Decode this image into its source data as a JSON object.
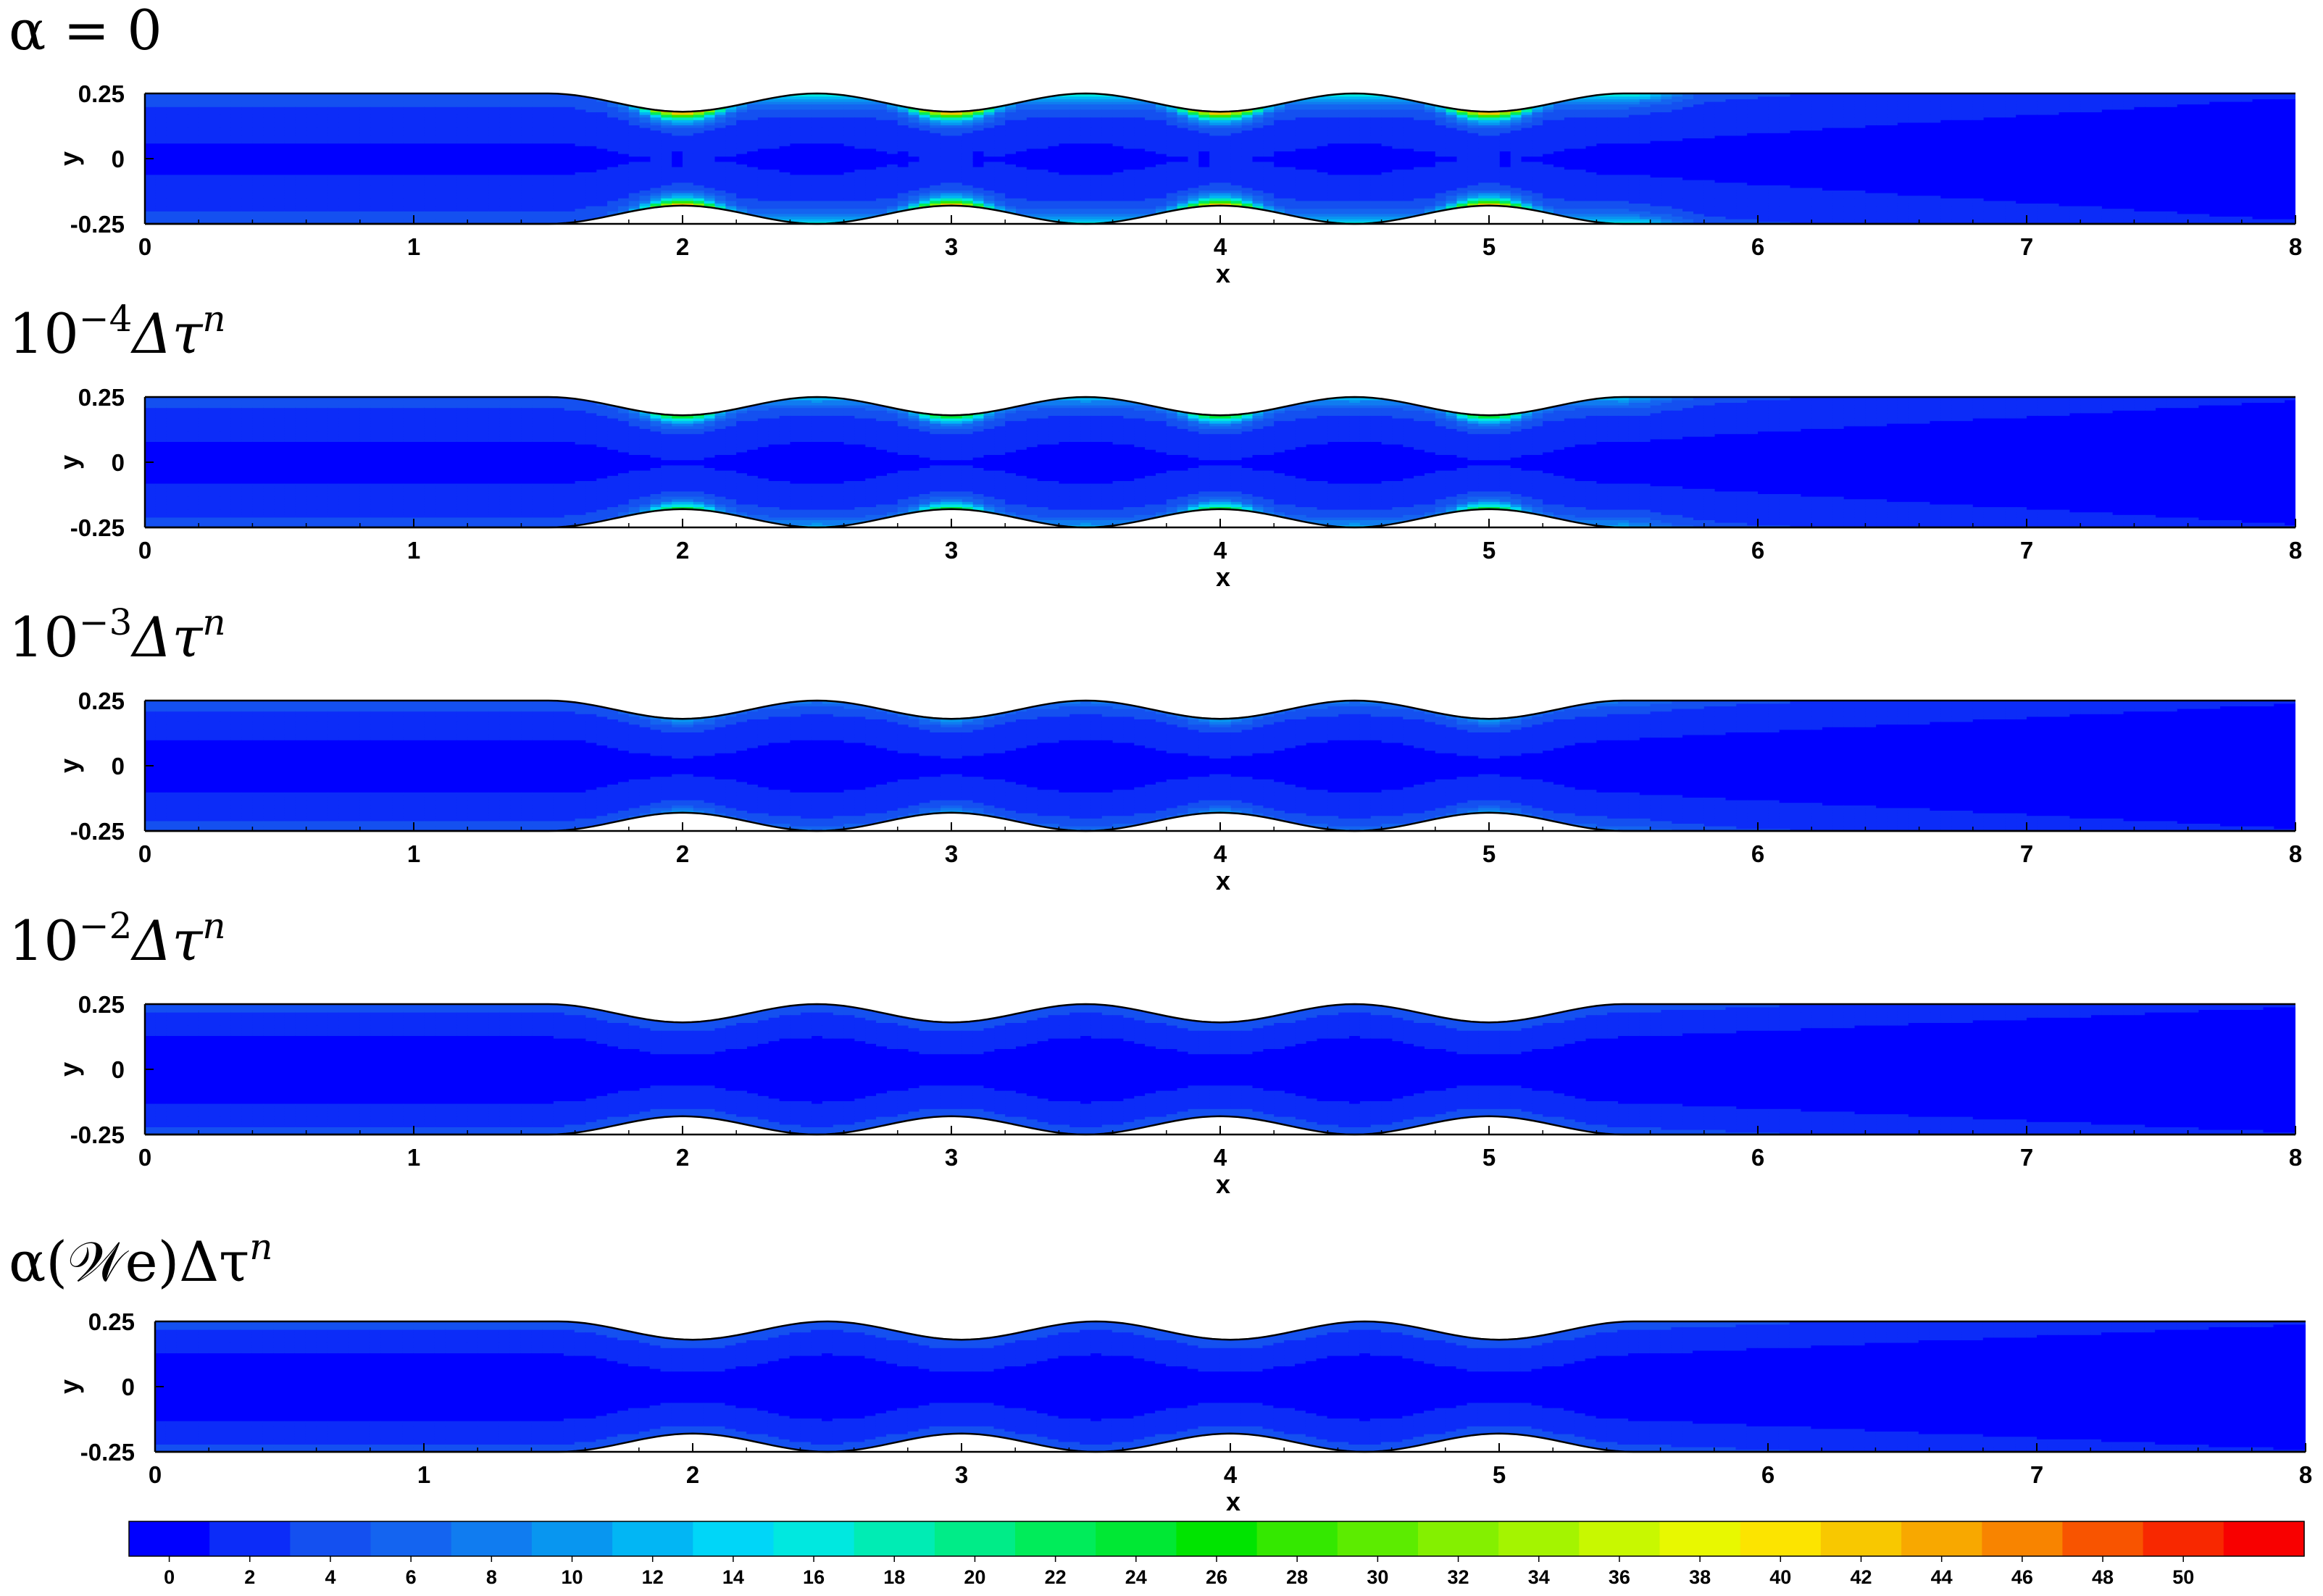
{
  "chart_data": {
    "type": "heatmap",
    "description_of_geometry": "channel 0<=x<=8, -0.25<=y<=0.25 with four sinusoidal constrictions between x=1.5 and x=5.5 narrowing to |y|=0.18 at x=2,3,4,5",
    "panels": [
      {
        "title_parts": [
          "α = 0",
          "",
          ""
        ],
        "xlabel": "x",
        "ylabel": "y",
        "xlim": [
          0,
          8
        ],
        "ylim": [
          -0.25,
          0.25
        ],
        "peak_value": 50,
        "hot_spots_x": [
          2,
          3,
          4,
          5
        ],
        "wall_band": 0.09,
        "streaks": true
      },
      {
        "title_parts": [
          "10",
          "−4",
          "Δτ"
        ],
        "xlabel": "x",
        "ylabel": "y",
        "xlim": [
          0,
          8
        ],
        "ylim": [
          -0.25,
          0.25
        ],
        "peak_value": 28,
        "hot_spots_x": [
          2,
          3,
          4,
          5
        ],
        "wall_band": 0.08,
        "streaks": false
      },
      {
        "title_parts": [
          "10",
          "−3",
          "Δτ"
        ],
        "xlabel": "x",
        "ylabel": "y",
        "xlim": [
          0,
          8
        ],
        "ylim": [
          -0.25,
          0.25
        ],
        "peak_value": 10,
        "hot_spots_x": [
          2,
          3,
          4,
          5
        ],
        "wall_band": 0.07,
        "streaks": false
      },
      {
        "title_parts": [
          "10",
          "−2",
          "Δτ"
        ],
        "xlabel": "x",
        "ylabel": "y",
        "xlim": [
          0,
          8
        ],
        "ylim": [
          -0.25,
          0.25
        ],
        "peak_value": 5,
        "hot_spots_x": [],
        "wall_band": 0.06,
        "streaks": false
      },
      {
        "title_parts": [
          "α(𝒲e)Δτ",
          "",
          ""
        ],
        "xlabel": "x",
        "ylabel": "y",
        "xlim": [
          0,
          8
        ],
        "ylim": [
          -0.25,
          0.25
        ],
        "peak_value": 5,
        "hot_spots_x": [],
        "wall_band": 0.06,
        "streaks": false
      }
    ],
    "title_superscript_n": "n",
    "x_ticks": [
      "0",
      "1",
      "2",
      "3",
      "4",
      "5",
      "6",
      "7",
      "8"
    ],
    "y_ticks": [
      "0.25",
      "0",
      "-0.25"
    ],
    "colorbar": {
      "range": [
        -1,
        51
      ],
      "tick_labels": [
        "0",
        "2",
        "4",
        "6",
        "8",
        "10",
        "12",
        "14",
        "16",
        "18",
        "20",
        "22",
        "24",
        "26",
        "28",
        "30",
        "32",
        "34",
        "36",
        "38",
        "40",
        "42",
        "44",
        "46",
        "48",
        "50"
      ],
      "colors": [
        "#0000ff",
        "#0c2cf8",
        "#1450f0",
        "#1464f0",
        "#107cf0",
        "#0896f0",
        "#02b6f4",
        "#00d6f8",
        "#00e8e0",
        "#00ecb4",
        "#00ec88",
        "#00ec5a",
        "#00e834",
        "#00e400",
        "#34e800",
        "#5cec00",
        "#84f000",
        "#a4f400",
        "#c8f800",
        "#e8f800",
        "#fce400",
        "#f8c800",
        "#f8a800",
        "#f88400",
        "#f85400",
        "#f82800",
        "#f80000"
      ]
    },
    "colors": {
      "wall_line": "#000000",
      "background": "#ffffff"
    }
  }
}
